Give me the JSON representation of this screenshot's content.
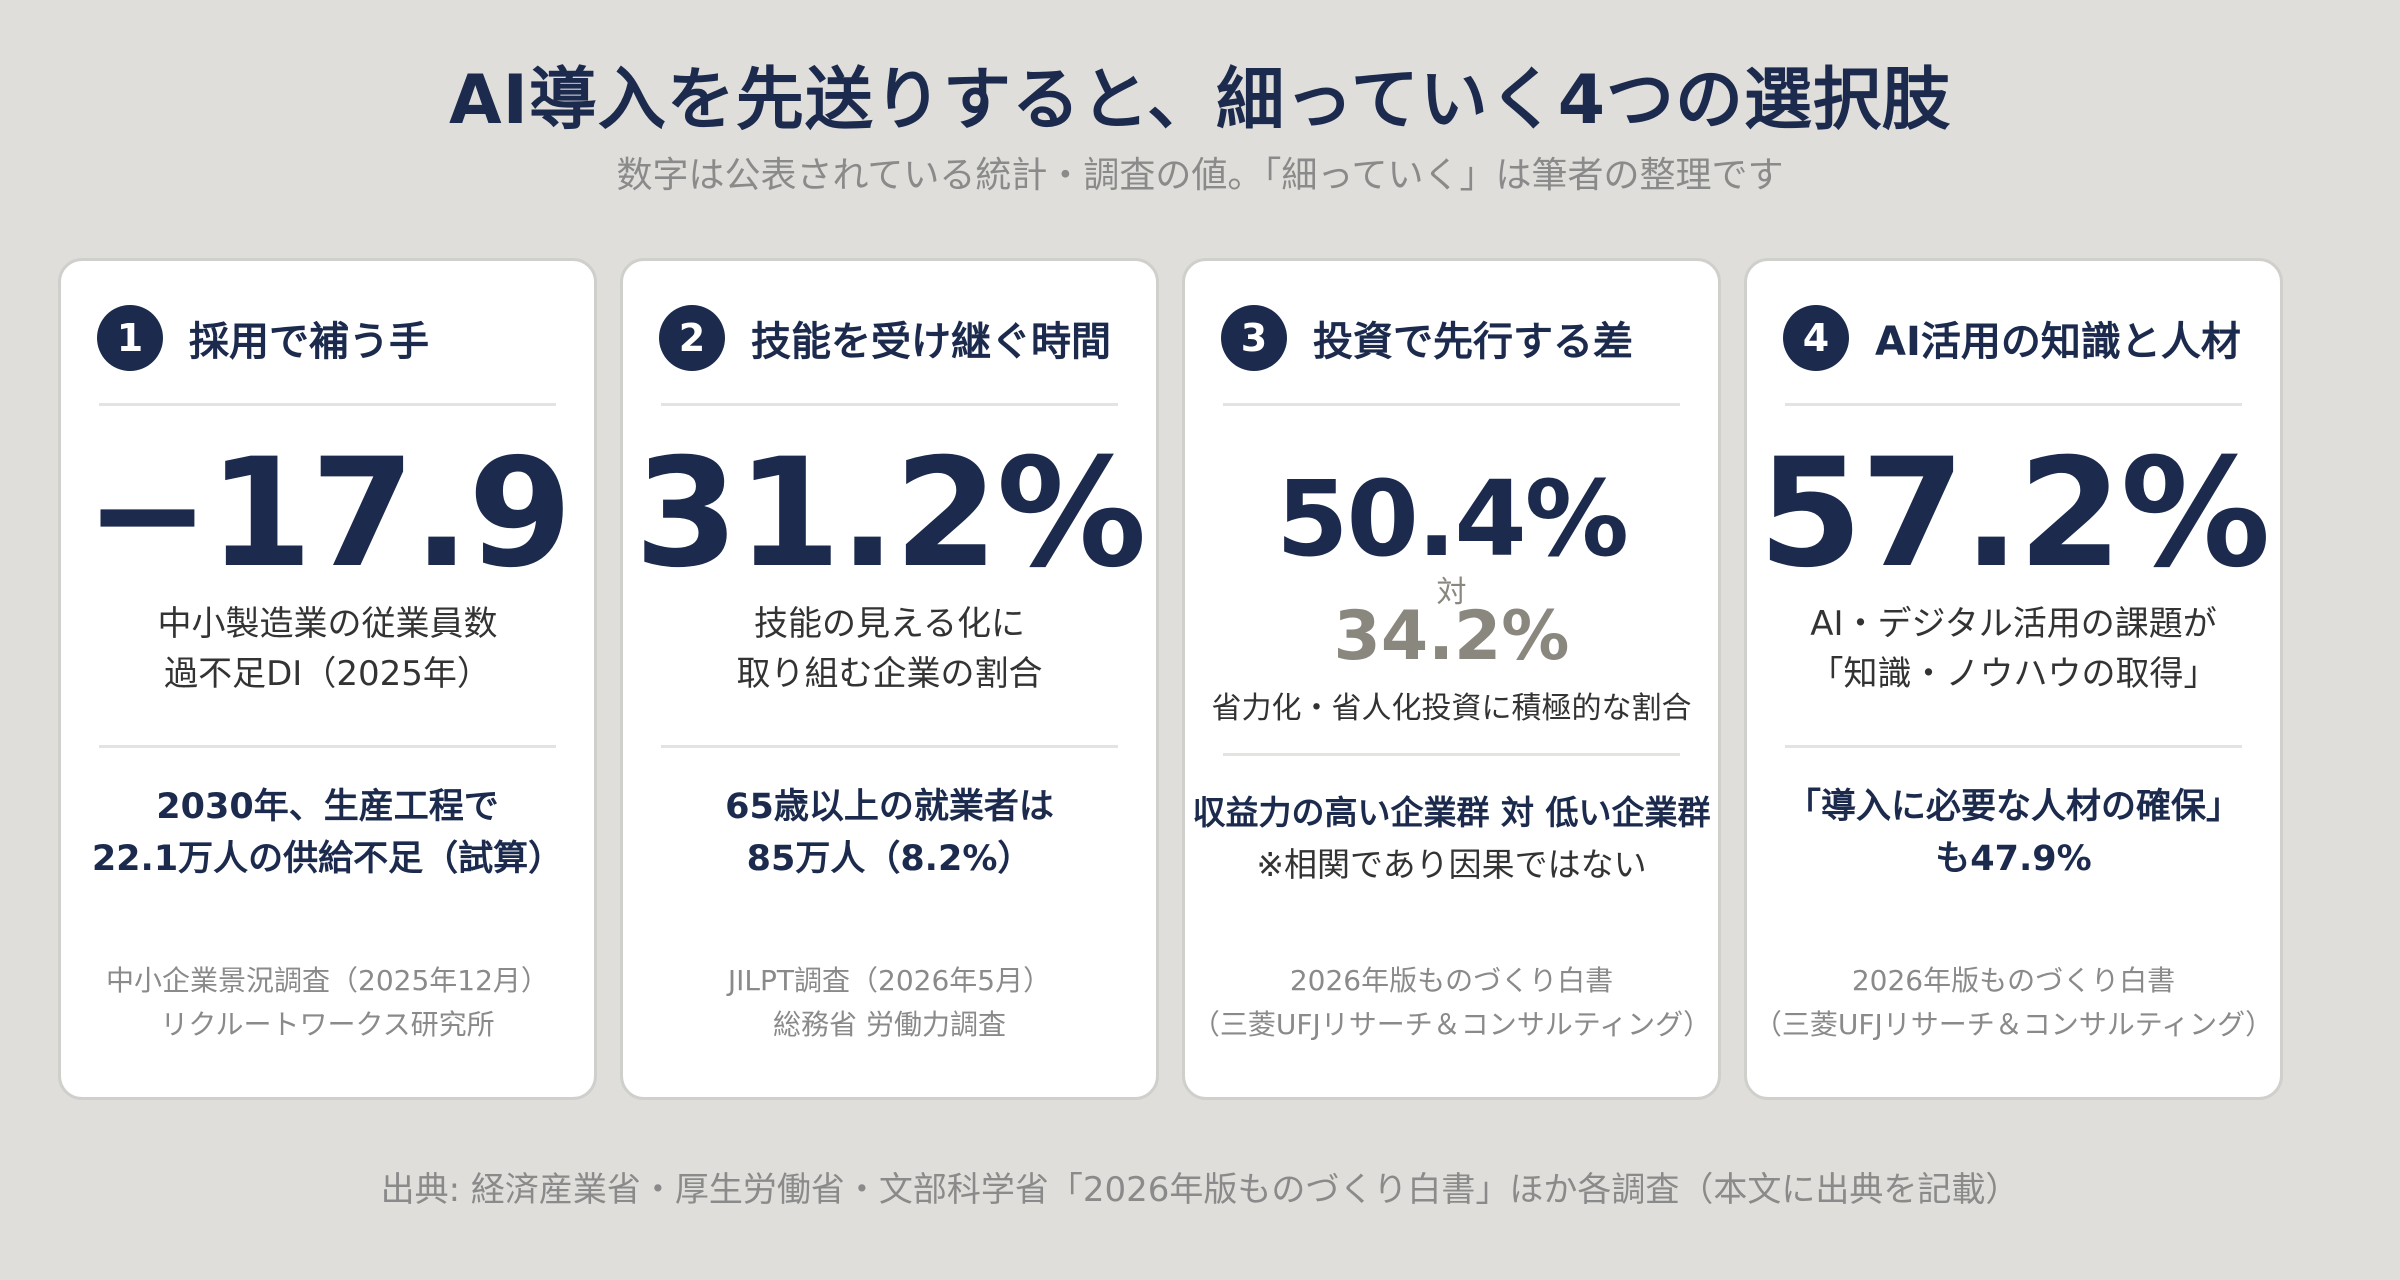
{
  "header": {
    "title": "AI導入を先送りすると、細っていく4つの選択肢",
    "subtitle": "数字は公表されている統計・調査の値。「細っていく」は筆者の整理です"
  },
  "cards": [
    {
      "number": "1",
      "title": "採用で補う手",
      "big_value": "−17.9",
      "desc_lines": [
        "中小製造業の従業員数",
        "過不足DI（2025年）"
      ],
      "fact_lines": [
        "2030年、生産工程で",
        "22.1万人の供給不足（試算）"
      ],
      "source_lines": [
        "中小企業景況調査（2025年12月）",
        "リクルートワークス研究所"
      ]
    },
    {
      "number": "2",
      "title": "技能を受け継ぐ時間",
      "big_value": "31.2%",
      "desc_lines": [
        "技能の見える化に",
        "取り組む企業の割合"
      ],
      "fact_lines": [
        "65歳以上の就業者は",
        "85万人（8.2%）"
      ],
      "source_lines": [
        "JILPT調査（2026年5月）",
        "総務省 労働力調査"
      ]
    },
    {
      "number": "3",
      "title": "投資で先行する差",
      "big_value": "50.4%",
      "vs_label": "対",
      "compare_value": "34.2%",
      "desc_lines": [
        "省力化・省人化投資に積極的な割合"
      ],
      "fact_lines": [
        "収益力の高い企業群 対 低い企業群",
        "※相関であり因果ではない"
      ],
      "source_lines": [
        "2026年版ものづくり白書",
        "（三菱UFJリサーチ＆コンサルティング）"
      ]
    },
    {
      "number": "4",
      "title": "AI活用の知識と人材",
      "big_value": "57.2%",
      "desc_lines": [
        "AI・デジタル活用の課題が",
        "「知識・ノウハウの取得」"
      ],
      "fact_lines": [
        "「導入に必要な人材の確保」",
        "も47.9%"
      ],
      "source_lines": [
        "2026年版ものづくり白書",
        "（三菱UFJリサーチ＆コンサルティング）"
      ]
    }
  ],
  "footer": {
    "text": "出典: 経済産業省・厚生労働省・文部科学省「2026年版ものづくり白書」ほか各調査（本文に出典を記載）"
  },
  "colors": {
    "background": "#dfdedb",
    "navy": "#1c2b4d",
    "grey_text": "#8a8a8a",
    "compare_grey": "#8a877f"
  }
}
